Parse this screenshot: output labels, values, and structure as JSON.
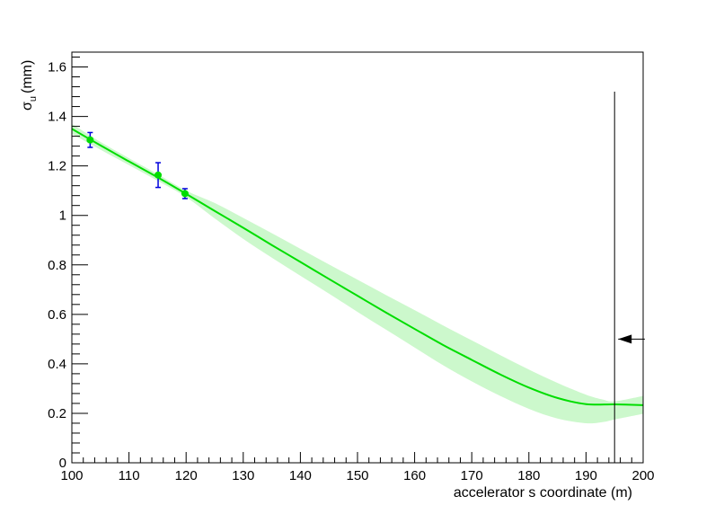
{
  "chart_data": {
    "type": "line",
    "xlabel": "accelerator s coordinate (m)",
    "ylabel": {
      "symbol": "σ",
      "subscript": "u",
      "unit": "(mm)"
    },
    "xlim": [
      100,
      200
    ],
    "ylim": [
      0,
      1.66
    ],
    "x_ticks": [
      100,
      110,
      120,
      130,
      140,
      150,
      160,
      170,
      180,
      190,
      200
    ],
    "y_ticks": [
      0,
      0.2,
      0.4,
      0.6,
      0.8,
      1,
      1.2,
      1.4,
      1.6
    ],
    "y_tick_labels": [
      "0",
      "0.2",
      "0.4",
      "0.6",
      "0.8",
      "1",
      "1.2",
      "1.4",
      "1.6"
    ],
    "grid": false,
    "fit_curve": {
      "color": "#00dd00",
      "x": [
        100,
        105,
        110,
        115,
        120,
        125,
        130,
        135,
        140,
        145,
        150,
        155,
        160,
        165,
        170,
        175,
        180,
        185,
        190,
        195,
        200
      ],
      "y": [
        1.35,
        1.283,
        1.218,
        1.154,
        1.087,
        1.018,
        0.95,
        0.88,
        0.812,
        0.743,
        0.675,
        0.607,
        0.541,
        0.476,
        0.416,
        0.357,
        0.304,
        0.262,
        0.237,
        0.236,
        0.233
      ]
    },
    "error_band": {
      "color": "#ccf8cc",
      "x": [
        100,
        105,
        110,
        115,
        120,
        125,
        130,
        135,
        140,
        145,
        150,
        155,
        160,
        165,
        170,
        175,
        180,
        185,
        190,
        193,
        195,
        200
      ],
      "upper": [
        1.37,
        1.297,
        1.231,
        1.167,
        1.1,
        1.05,
        0.99,
        0.928,
        0.865,
        0.802,
        0.74,
        0.678,
        0.617,
        0.555,
        0.495,
        0.435,
        0.377,
        0.323,
        0.275,
        0.255,
        0.248,
        0.27
      ],
      "lower": [
        1.33,
        1.266,
        1.203,
        1.14,
        1.074,
        0.988,
        0.905,
        0.829,
        0.756,
        0.684,
        0.61,
        0.538,
        0.466,
        0.394,
        0.329,
        0.27,
        0.218,
        0.179,
        0.16,
        0.165,
        0.175,
        0.198
      ]
    },
    "measurements": {
      "marker_color": "#00dd00",
      "error_bar_color": "#0000dd",
      "points": [
        {
          "x": 103.2,
          "y": 1.305,
          "err": 0.03
        },
        {
          "x": 115.1,
          "y": 1.163,
          "err": 0.05
        },
        {
          "x": 119.8,
          "y": 1.088,
          "err": 0.02
        }
      ]
    },
    "cut_line": {
      "x": 195,
      "y_top": 1.5,
      "arrow_y": 0.5,
      "arrow_to_x": 195,
      "arrow_from_x": 200.3,
      "color": "#000000"
    }
  }
}
